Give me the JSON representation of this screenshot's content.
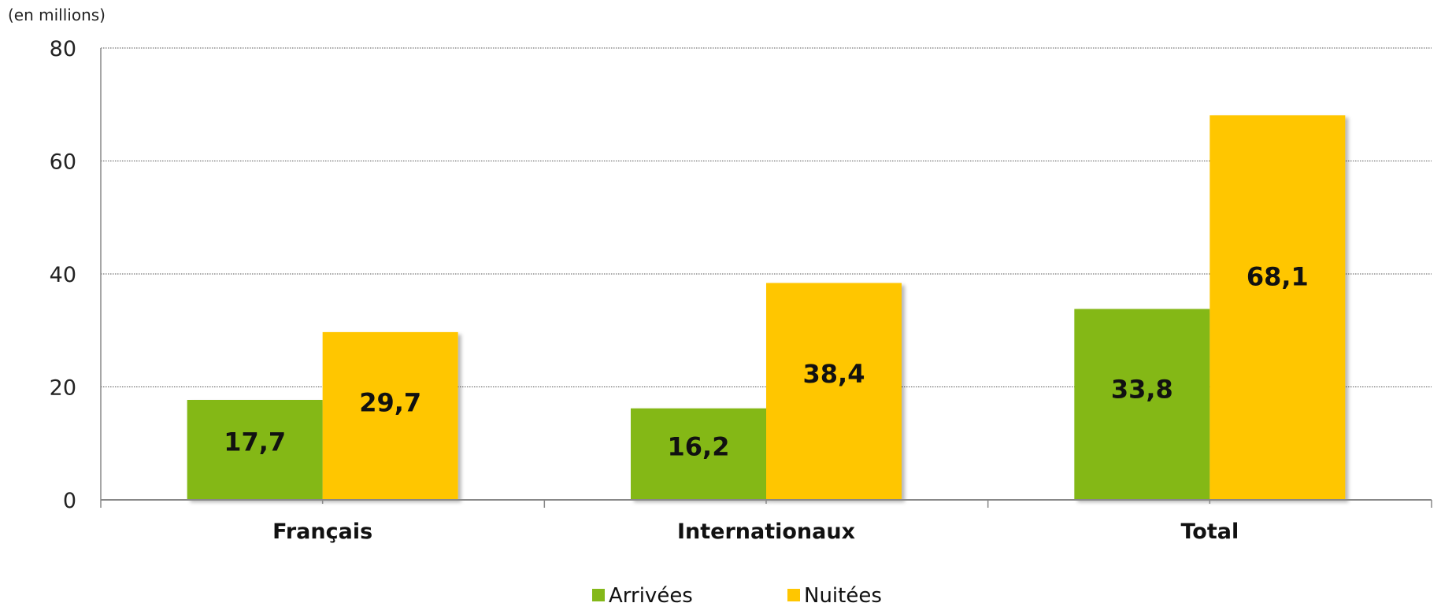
{
  "chart_data": {
    "type": "bar",
    "unit_label": "(en millions)",
    "categories": [
      "Français",
      "Internationaux",
      "Total"
    ],
    "series": [
      {
        "name": "Arrivées",
        "values": [
          17.7,
          16.2,
          33.8
        ],
        "labels": [
          "17,7",
          "16,2",
          "33,8"
        ],
        "color": "#84b819"
      },
      {
        "name": "Nuitées",
        "values": [
          29.7,
          38.4,
          68.1
        ],
        "labels": [
          "29,7",
          "38,4",
          "68,1"
        ],
        "color": "#ffc600"
      }
    ],
    "ylim": [
      0,
      80
    ],
    "yticks": [
      0,
      20,
      40,
      60,
      80
    ],
    "grid": true,
    "legend_position": "bottom-center"
  }
}
